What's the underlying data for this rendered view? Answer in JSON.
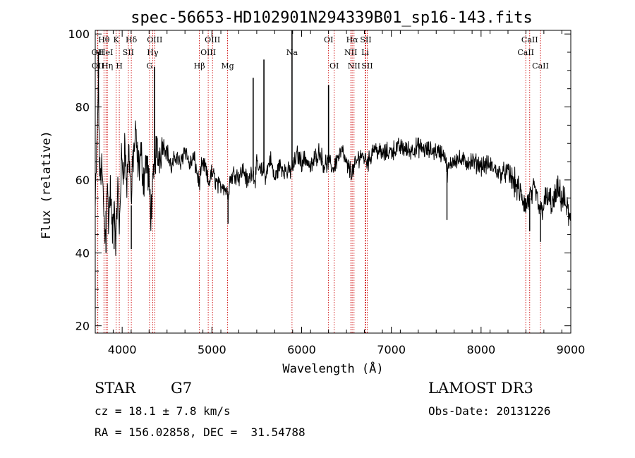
{
  "chart_data": {
    "type": "line",
    "title": "spec-56653-HD102901N294339B01_sp16-143.fits",
    "xlabel": "Wavelength (Å)",
    "ylabel": "Flux (relative)",
    "xlim": [
      3700,
      9000
    ],
    "ylim": [
      18,
      101
    ],
    "xticks": [
      4000,
      5000,
      6000,
      7000,
      8000,
      9000
    ],
    "xtick_labels": [
      "4000",
      "5000",
      "6000",
      "7000",
      "8000",
      "9000"
    ],
    "yticks": [
      20,
      40,
      60,
      80,
      100
    ],
    "ytick_labels": [
      "20",
      "40",
      "60",
      "80",
      "100"
    ],
    "series": [
      {
        "name": "spectrum",
        "x": [
          3700,
          3720,
          3735,
          3750,
          3770,
          3790,
          3810,
          3830,
          3850,
          3870,
          3890,
          3910,
          3933,
          3950,
          3968,
          3990,
          4010,
          4030,
          4050,
          4070,
          4090,
          4102,
          4120,
          4150,
          4180,
          4210,
          4240,
          4270,
          4300,
          4320,
          4340,
          4360,
          4380,
          4400,
          4450,
          4500,
          4550,
          4600,
          4650,
          4700,
          4750,
          4800,
          4850,
          4861,
          4880,
          4920,
          4960,
          5000,
          5040,
          5080,
          5120,
          5160,
          5180,
          5200,
          5250,
          5300,
          5350,
          5400,
          5450,
          5480,
          5500,
          5550,
          5580,
          5600,
          5650,
          5700,
          5750,
          5800,
          5850,
          5893,
          5910,
          5950,
          6000,
          6050,
          6100,
          6150,
          6200,
          6250,
          6300,
          6350,
          6400,
          6450,
          6500,
          6563,
          6600,
          6650,
          6700,
          6750,
          6800,
          6900,
          7000,
          7100,
          7200,
          7300,
          7400,
          7500,
          7600,
          7620,
          7700,
          7800,
          7900,
          8000,
          8100,
          8200,
          8300,
          8400,
          8498,
          8542,
          8600,
          8662,
          8700,
          8750,
          8800,
          8850,
          8900,
          8950,
          9000
        ],
        "y": [
          52,
          70,
          88,
          60,
          64,
          55,
          43,
          60,
          48,
          58,
          44,
          54,
          42,
          60,
          46,
          65,
          62,
          70,
          58,
          68,
          64,
          53,
          66,
          72,
          63,
          67,
          60,
          66,
          58,
          52,
          56,
          64,
          69,
          66,
          70,
          68,
          63,
          67,
          64,
          69,
          64,
          66,
          60,
          59,
          63,
          64,
          59,
          62,
          60,
          58,
          59,
          57,
          56,
          60,
          62,
          61,
          63,
          59,
          63,
          60,
          64,
          62,
          63,
          61,
          66,
          60,
          64,
          63,
          62,
          63,
          64,
          67,
          65,
          66,
          63,
          66,
          68,
          64,
          65,
          63,
          66,
          68,
          64,
          62,
          64,
          67,
          66,
          65,
          69,
          67,
          68,
          69,
          68,
          69,
          68,
          68,
          67,
          62,
          66,
          65,
          65,
          64,
          64,
          62,
          62,
          58,
          53,
          55,
          57,
          51,
          54,
          55,
          53,
          57,
          55,
          53,
          48
        ],
        "emission_spikes": [
          {
            "x": 3735,
            "y": 95
          },
          {
            "x": 4360,
            "y": 91
          },
          {
            "x": 5460,
            "y": 88
          },
          {
            "x": 5580,
            "y": 93
          },
          {
            "x": 5893,
            "y": 101
          },
          {
            "x": 6300,
            "y": 86
          }
        ],
        "absorption_dips": [
          {
            "x": 3820,
            "y": 40
          },
          {
            "x": 3910,
            "y": 41
          },
          {
            "x": 4102,
            "y": 41
          },
          {
            "x": 5180,
            "y": 48
          },
          {
            "x": 7620,
            "y": 49
          },
          {
            "x": 8498,
            "y": 51
          },
          {
            "x": 8542,
            "y": 46
          },
          {
            "x": 8662,
            "y": 43
          }
        ]
      }
    ],
    "lines": [
      {
        "label": "Hθ",
        "x": 3797,
        "row": 0
      },
      {
        "label": "OII",
        "x": 3727,
        "row": 1
      },
      {
        "label": "OII",
        "x": 3729,
        "row": 2
      },
      {
        "label": "HeI",
        "x": 3820,
        "row": 1
      },
      {
        "label": "Hη",
        "x": 3835,
        "row": 2
      },
      {
        "label": "K",
        "x": 3933,
        "row": 0
      },
      {
        "label": "SII",
        "x": 4069,
        "row": 1
      },
      {
        "label": "H",
        "x": 3968,
        "row": 2
      },
      {
        "label": "Hδ",
        "x": 4102,
        "row": 0
      },
      {
        "label": "OIII",
        "x": 4363,
        "row": 0
      },
      {
        "label": "Hγ",
        "x": 4340,
        "row": 1
      },
      {
        "label": "G",
        "x": 4305,
        "row": 2
      },
      {
        "label": "Hβ",
        "x": 4861,
        "row": 2
      },
      {
        "label": "OIII",
        "x": 5007,
        "row": 0
      },
      {
        "label": "OIII",
        "x": 4959,
        "row": 1
      },
      {
        "label": "Mg",
        "x": 5175,
        "row": 2
      },
      {
        "label": "Na",
        "x": 5893,
        "row": 1
      },
      {
        "label": "OI",
        "x": 6300,
        "row": 0
      },
      {
        "label": "OI",
        "x": 6363,
        "row": 2
      },
      {
        "label": "Hα",
        "x": 6563,
        "row": 0
      },
      {
        "label": "SII",
        "x": 6716,
        "row": 0
      },
      {
        "label": "NII",
        "x": 6548,
        "row": 1
      },
      {
        "label": "Li",
        "x": 6708,
        "row": 1
      },
      {
        "label": "NII",
        "x": 6584,
        "row": 2
      },
      {
        "label": "SII",
        "x": 6731,
        "row": 2
      },
      {
        "label": "CaII",
        "x": 8542,
        "row": 0
      },
      {
        "label": "CaII",
        "x": 8498,
        "row": 1
      },
      {
        "label": "CaII",
        "x": 8662,
        "row": 2
      }
    ]
  },
  "info": {
    "object_class": "STAR",
    "subclass": "G7",
    "survey": "LAMOST DR3",
    "cz": "cz = 18.1 ± 7.8 km/s",
    "obs_date": "Obs-Date: 20131226",
    "coords": "RA = 156.02858, DEC =  31.54788"
  },
  "colors": {
    "spectrum": "#000000",
    "line_marker": "#cc0000",
    "background": "#ffffff"
  }
}
